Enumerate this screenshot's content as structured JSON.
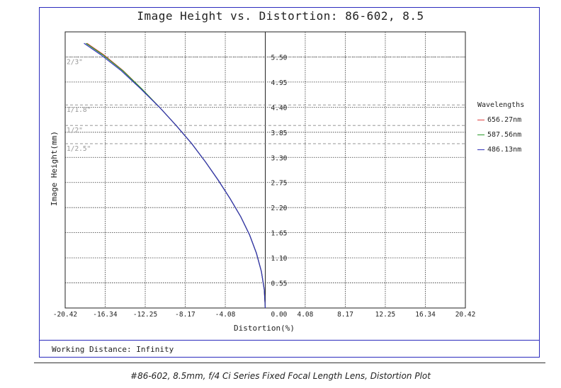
{
  "chart_data": {
    "type": "line",
    "title": "Image Height vs. Distortion: 86-602, 8.5",
    "xlabel": "Distortion(%)",
    "ylabel": "Image Height(mm)",
    "xlim": [
      -20.42,
      20.42
    ],
    "ylim": [
      0,
      6.05
    ],
    "x_ticks": [
      "-20.42",
      "-16.34",
      "-12.25",
      "-8.17",
      "-4.08",
      "0.00",
      "4.08",
      "8.17",
      "12.25",
      "16.34",
      "20.42"
    ],
    "y_ticks": [
      "0.55",
      "1.10",
      "1.65",
      "2.20",
      "2.75",
      "3.30",
      "3.85",
      "4.40",
      "4.95",
      "5.50"
    ],
    "sensor_markers": [
      {
        "label": "2/3\"",
        "y": 5.5
      },
      {
        "label": "1/1.8\"",
        "y": 4.45
      },
      {
        "label": "1/2\"",
        "y": 4.0
      },
      {
        "label": "1/2.5\"",
        "y": 3.6
      }
    ],
    "grid": true,
    "legend": {
      "title": "Wavelengths",
      "position": "right"
    },
    "series": [
      {
        "name": "656.27nm",
        "color": "#e04040",
        "x": [
          0.0,
          -0.1,
          -0.4,
          -0.9,
          -1.6,
          -2.5,
          -3.6,
          -4.8,
          -6.1,
          -7.5,
          -9.1,
          -10.8,
          -12.6,
          -14.5,
          -16.5,
          -18.2
        ],
        "y": [
          0.0,
          0.4,
          0.8,
          1.2,
          1.6,
          2.0,
          2.4,
          2.8,
          3.2,
          3.6,
          4.0,
          4.4,
          4.8,
          5.2,
          5.55,
          5.8
        ]
      },
      {
        "name": "587.56nm",
        "color": "#2a9a2a",
        "x": [
          0.0,
          -0.1,
          -0.4,
          -0.9,
          -1.6,
          -2.5,
          -3.6,
          -4.8,
          -6.1,
          -7.5,
          -9.1,
          -10.8,
          -12.6,
          -14.55,
          -16.6,
          -18.3
        ],
        "y": [
          0.0,
          0.4,
          0.8,
          1.2,
          1.6,
          2.0,
          2.4,
          2.8,
          3.2,
          3.6,
          4.0,
          4.4,
          4.8,
          5.2,
          5.55,
          5.8
        ]
      },
      {
        "name": "486.13nm",
        "color": "#3030b8",
        "x": [
          0.0,
          -0.1,
          -0.4,
          -0.9,
          -1.6,
          -2.5,
          -3.6,
          -4.8,
          -6.1,
          -7.5,
          -9.1,
          -10.8,
          -12.7,
          -14.7,
          -16.8,
          -18.5
        ],
        "y": [
          0.0,
          0.4,
          0.8,
          1.2,
          1.6,
          2.0,
          2.4,
          2.8,
          3.2,
          3.6,
          4.0,
          4.4,
          4.8,
          5.2,
          5.55,
          5.8
        ]
      }
    ]
  },
  "working_distance": "Working Distance: Infinity",
  "caption": "#86-602, 8.5mm, f/4 Ci Series Fixed Focal Length Lens, Distortion Plot"
}
